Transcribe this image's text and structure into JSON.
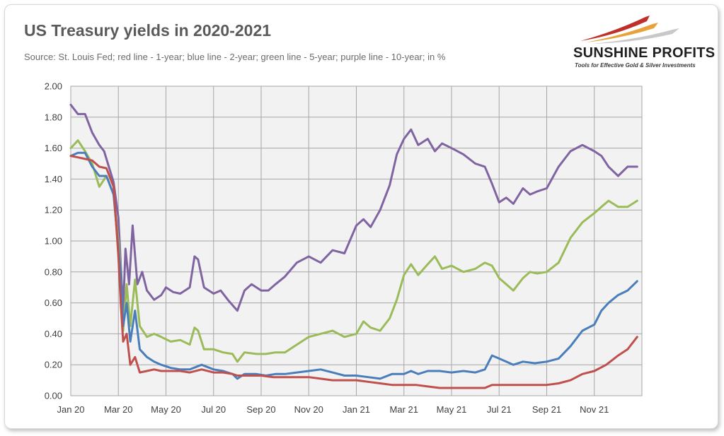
{
  "header": {
    "title": "US Treasury yields in 2020-2021",
    "subtitle": "Source: St. Louis Fed; red line - 1-year; blue line - 2-year; green line - 5-year; purple line - 10-year; in %"
  },
  "logo": {
    "name": "SUNSHINE PROFITS",
    "tagline": "Tools for Effective Gold & Silver Investments",
    "colors": {
      "swoosh_red": "#c0302b",
      "swoosh_orange": "#e7a33a",
      "swoosh_grey": "#c8c8c8"
    }
  },
  "chart_data": {
    "type": "line",
    "title": "US Treasury yields in 2020-2021",
    "xlabel": "",
    "ylabel": "",
    "ylim": [
      0,
      2
    ],
    "xlim": [
      0,
      24
    ],
    "yticks": [
      "0.00",
      "0.20",
      "0.40",
      "0.60",
      "0.80",
      "1.00",
      "1.20",
      "1.40",
      "1.60",
      "1.80",
      "2.00"
    ],
    "xticks": [
      {
        "x": 0,
        "label": "Jan 20"
      },
      {
        "x": 2,
        "label": "Mar 20"
      },
      {
        "x": 4,
        "label": "May 20"
      },
      {
        "x": 6,
        "label": "Jul 20"
      },
      {
        "x": 8,
        "label": "Sep 20"
      },
      {
        "x": 10,
        "label": "Nov 20"
      },
      {
        "x": 12,
        "label": "Jan 21"
      },
      {
        "x": 14,
        "label": "Mar 21"
      },
      {
        "x": 16,
        "label": "May 21"
      },
      {
        "x": 18,
        "label": "Jul 21"
      },
      {
        "x": 20,
        "label": "Sep 21"
      },
      {
        "x": 22,
        "label": "Nov 21"
      }
    ],
    "x_unit": "months since Jan 2020",
    "grid": true,
    "plot_background": "#f2f2f2",
    "series": [
      {
        "color": "#8064a2",
        "points": [
          [
            0,
            1.88
          ],
          [
            0.3,
            1.82
          ],
          [
            0.6,
            1.82
          ],
          [
            0.9,
            1.7
          ],
          [
            1.2,
            1.62
          ],
          [
            1.4,
            1.58
          ],
          [
            1.6,
            1.48
          ],
          [
            1.8,
            1.38
          ],
          [
            2.0,
            1.15
          ],
          [
            2.1,
            0.85
          ],
          [
            2.2,
            0.55
          ],
          [
            2.3,
            0.95
          ],
          [
            2.45,
            0.72
          ],
          [
            2.6,
            1.1
          ],
          [
            2.8,
            0.72
          ],
          [
            3.0,
            0.8
          ],
          [
            3.2,
            0.68
          ],
          [
            3.5,
            0.62
          ],
          [
            3.8,
            0.65
          ],
          [
            4.0,
            0.7
          ],
          [
            4.3,
            0.67
          ],
          [
            4.6,
            0.66
          ],
          [
            5.0,
            0.7
          ],
          [
            5.2,
            0.9
          ],
          [
            5.35,
            0.88
          ],
          [
            5.6,
            0.7
          ],
          [
            6.0,
            0.66
          ],
          [
            6.3,
            0.68
          ],
          [
            6.6,
            0.62
          ],
          [
            7.0,
            0.55
          ],
          [
            7.3,
            0.68
          ],
          [
            7.6,
            0.72
          ],
          [
            8.0,
            0.68
          ],
          [
            8.3,
            0.68
          ],
          [
            8.6,
            0.72
          ],
          [
            9.0,
            0.77
          ],
          [
            9.5,
            0.86
          ],
          [
            10.0,
            0.9
          ],
          [
            10.5,
            0.86
          ],
          [
            11.0,
            0.94
          ],
          [
            11.5,
            0.92
          ],
          [
            12.0,
            1.1
          ],
          [
            12.3,
            1.14
          ],
          [
            12.6,
            1.09
          ],
          [
            13.0,
            1.2
          ],
          [
            13.4,
            1.36
          ],
          [
            13.7,
            1.56
          ],
          [
            14.0,
            1.66
          ],
          [
            14.3,
            1.72
          ],
          [
            14.6,
            1.62
          ],
          [
            15.0,
            1.66
          ],
          [
            15.3,
            1.58
          ],
          [
            15.6,
            1.63
          ],
          [
            16.0,
            1.6
          ],
          [
            16.5,
            1.56
          ],
          [
            17.0,
            1.5
          ],
          [
            17.4,
            1.48
          ],
          [
            17.7,
            1.37
          ],
          [
            18.0,
            1.25
          ],
          [
            18.3,
            1.28
          ],
          [
            18.6,
            1.24
          ],
          [
            19.0,
            1.34
          ],
          [
            19.3,
            1.3
          ],
          [
            19.6,
            1.32
          ],
          [
            20.0,
            1.34
          ],
          [
            20.5,
            1.48
          ],
          [
            21.0,
            1.58
          ],
          [
            21.5,
            1.62
          ],
          [
            22.0,
            1.58
          ],
          [
            22.3,
            1.55
          ],
          [
            22.6,
            1.48
          ],
          [
            23.0,
            1.42
          ],
          [
            23.4,
            1.48
          ],
          [
            23.8,
            1.48
          ]
        ]
      },
      {
        "color": "#9bbb59",
        "points": [
          [
            0,
            1.6
          ],
          [
            0.3,
            1.65
          ],
          [
            0.6,
            1.58
          ],
          [
            0.9,
            1.5
          ],
          [
            1.2,
            1.35
          ],
          [
            1.5,
            1.42
          ],
          [
            1.8,
            1.3
          ],
          [
            2.0,
            1.0
          ],
          [
            2.1,
            0.82
          ],
          [
            2.2,
            0.42
          ],
          [
            2.35,
            0.72
          ],
          [
            2.5,
            0.45
          ],
          [
            2.7,
            0.75
          ],
          [
            2.9,
            0.45
          ],
          [
            3.2,
            0.38
          ],
          [
            3.5,
            0.4
          ],
          [
            3.8,
            0.38
          ],
          [
            4.2,
            0.35
          ],
          [
            4.6,
            0.36
          ],
          [
            5.0,
            0.33
          ],
          [
            5.2,
            0.44
          ],
          [
            5.35,
            0.42
          ],
          [
            5.6,
            0.3
          ],
          [
            6.0,
            0.3
          ],
          [
            6.4,
            0.28
          ],
          [
            6.8,
            0.27
          ],
          [
            7.0,
            0.22
          ],
          [
            7.3,
            0.28
          ],
          [
            7.8,
            0.27
          ],
          [
            8.2,
            0.27
          ],
          [
            8.6,
            0.28
          ],
          [
            9.0,
            0.28
          ],
          [
            9.5,
            0.33
          ],
          [
            10.0,
            0.38
          ],
          [
            10.5,
            0.4
          ],
          [
            11.0,
            0.42
          ],
          [
            11.5,
            0.38
          ],
          [
            12.0,
            0.4
          ],
          [
            12.3,
            0.48
          ],
          [
            12.6,
            0.44
          ],
          [
            13.0,
            0.42
          ],
          [
            13.4,
            0.5
          ],
          [
            13.7,
            0.62
          ],
          [
            14.0,
            0.78
          ],
          [
            14.3,
            0.85
          ],
          [
            14.6,
            0.78
          ],
          [
            15.0,
            0.85
          ],
          [
            15.3,
            0.9
          ],
          [
            15.6,
            0.82
          ],
          [
            16.0,
            0.84
          ],
          [
            16.5,
            0.8
          ],
          [
            17.0,
            0.82
          ],
          [
            17.4,
            0.86
          ],
          [
            17.7,
            0.84
          ],
          [
            18.0,
            0.76
          ],
          [
            18.3,
            0.72
          ],
          [
            18.6,
            0.68
          ],
          [
            19.0,
            0.76
          ],
          [
            19.3,
            0.8
          ],
          [
            19.6,
            0.79
          ],
          [
            20.0,
            0.8
          ],
          [
            20.5,
            0.86
          ],
          [
            21.0,
            1.02
          ],
          [
            21.5,
            1.12
          ],
          [
            22.0,
            1.18
          ],
          [
            22.3,
            1.22
          ],
          [
            22.6,
            1.26
          ],
          [
            23.0,
            1.22
          ],
          [
            23.4,
            1.22
          ],
          [
            23.8,
            1.26
          ]
        ]
      },
      {
        "color": "#4a7ebb",
        "points": [
          [
            0,
            1.55
          ],
          [
            0.3,
            1.57
          ],
          [
            0.6,
            1.57
          ],
          [
            0.9,
            1.48
          ],
          [
            1.2,
            1.42
          ],
          [
            1.5,
            1.42
          ],
          [
            1.8,
            1.3
          ],
          [
            2.0,
            0.95
          ],
          [
            2.1,
            0.8
          ],
          [
            2.2,
            0.45
          ],
          [
            2.35,
            0.6
          ],
          [
            2.5,
            0.35
          ],
          [
            2.7,
            0.55
          ],
          [
            2.9,
            0.3
          ],
          [
            3.2,
            0.25
          ],
          [
            3.5,
            0.22
          ],
          [
            3.8,
            0.2
          ],
          [
            4.2,
            0.18
          ],
          [
            4.6,
            0.17
          ],
          [
            5.0,
            0.17
          ],
          [
            5.5,
            0.2
          ],
          [
            6.0,
            0.17
          ],
          [
            6.4,
            0.16
          ],
          [
            6.8,
            0.14
          ],
          [
            7.0,
            0.11
          ],
          [
            7.3,
            0.14
          ],
          [
            7.8,
            0.14
          ],
          [
            8.2,
            0.13
          ],
          [
            8.6,
            0.14
          ],
          [
            9.0,
            0.14
          ],
          [
            9.5,
            0.15
          ],
          [
            10.0,
            0.16
          ],
          [
            10.5,
            0.17
          ],
          [
            11.0,
            0.15
          ],
          [
            11.5,
            0.13
          ],
          [
            12.0,
            0.13
          ],
          [
            12.5,
            0.12
          ],
          [
            13.0,
            0.11
          ],
          [
            13.5,
            0.14
          ],
          [
            14.0,
            0.14
          ],
          [
            14.3,
            0.16
          ],
          [
            14.6,
            0.14
          ],
          [
            15.0,
            0.16
          ],
          [
            15.5,
            0.16
          ],
          [
            16.0,
            0.15
          ],
          [
            16.5,
            0.16
          ],
          [
            17.0,
            0.15
          ],
          [
            17.4,
            0.17
          ],
          [
            17.7,
            0.26
          ],
          [
            18.0,
            0.24
          ],
          [
            18.3,
            0.22
          ],
          [
            18.6,
            0.2
          ],
          [
            19.0,
            0.22
          ],
          [
            19.5,
            0.21
          ],
          [
            20.0,
            0.22
          ],
          [
            20.5,
            0.24
          ],
          [
            21.0,
            0.32
          ],
          [
            21.5,
            0.42
          ],
          [
            22.0,
            0.46
          ],
          [
            22.3,
            0.55
          ],
          [
            22.6,
            0.6
          ],
          [
            23.0,
            0.65
          ],
          [
            23.4,
            0.68
          ],
          [
            23.8,
            0.74
          ]
        ]
      },
      {
        "color": "#c0504d",
        "points": [
          [
            0,
            1.55
          ],
          [
            0.3,
            1.54
          ],
          [
            0.6,
            1.53
          ],
          [
            0.9,
            1.52
          ],
          [
            1.2,
            1.48
          ],
          [
            1.5,
            1.47
          ],
          [
            1.8,
            1.35
          ],
          [
            2.0,
            0.9
          ],
          [
            2.1,
            0.6
          ],
          [
            2.2,
            0.35
          ],
          [
            2.35,
            0.4
          ],
          [
            2.5,
            0.2
          ],
          [
            2.7,
            0.25
          ],
          [
            2.9,
            0.15
          ],
          [
            3.2,
            0.16
          ],
          [
            3.5,
            0.17
          ],
          [
            3.8,
            0.16
          ],
          [
            4.2,
            0.16
          ],
          [
            4.6,
            0.16
          ],
          [
            5.0,
            0.15
          ],
          [
            5.5,
            0.17
          ],
          [
            6.0,
            0.15
          ],
          [
            6.4,
            0.15
          ],
          [
            6.8,
            0.14
          ],
          [
            7.0,
            0.13
          ],
          [
            7.5,
            0.13
          ],
          [
            8.0,
            0.13
          ],
          [
            8.5,
            0.12
          ],
          [
            9.0,
            0.12
          ],
          [
            9.5,
            0.12
          ],
          [
            10.0,
            0.12
          ],
          [
            10.5,
            0.11
          ],
          [
            11.0,
            0.1
          ],
          [
            11.5,
            0.1
          ],
          [
            12.0,
            0.1
          ],
          [
            12.5,
            0.09
          ],
          [
            13.0,
            0.08
          ],
          [
            13.5,
            0.07
          ],
          [
            14.0,
            0.07
          ],
          [
            14.5,
            0.07
          ],
          [
            15.0,
            0.06
          ],
          [
            15.5,
            0.05
          ],
          [
            16.0,
            0.05
          ],
          [
            16.5,
            0.05
          ],
          [
            17.0,
            0.05
          ],
          [
            17.4,
            0.05
          ],
          [
            17.7,
            0.07
          ],
          [
            18.0,
            0.07
          ],
          [
            18.5,
            0.07
          ],
          [
            19.0,
            0.07
          ],
          [
            19.5,
            0.07
          ],
          [
            20.0,
            0.07
          ],
          [
            20.5,
            0.08
          ],
          [
            21.0,
            0.1
          ],
          [
            21.5,
            0.14
          ],
          [
            22.0,
            0.16
          ],
          [
            22.5,
            0.2
          ],
          [
            23.0,
            0.26
          ],
          [
            23.4,
            0.3
          ],
          [
            23.8,
            0.38
          ]
        ]
      }
    ]
  }
}
